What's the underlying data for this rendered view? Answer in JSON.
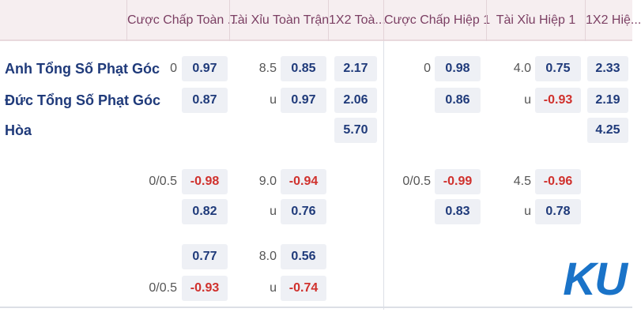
{
  "header": {
    "columns": [
      "Cược Chấp Toàn ...",
      "Tài Xỉu Toàn Trận",
      "1X2 Toà...",
      "Cược Chấp Hiệp 1",
      "Tài Xỉu Hiệp 1",
      "1X2 Hiệ..."
    ]
  },
  "teams": [
    "Anh Tổng Số Phạt Góc",
    "Đức Tổng Số Phạt Góc",
    "Hòa"
  ],
  "rows": [
    [
      "0",
      "0.97",
      "8.5",
      "0.85",
      "2.17",
      "0",
      "0.98",
      "4.0",
      "0.75",
      "2.33"
    ],
    [
      null,
      "0.87",
      "u",
      "0.97",
      "2.06",
      null,
      "0.86",
      "u",
      "-0.93",
      "2.19"
    ],
    [
      null,
      null,
      null,
      null,
      "5.70",
      null,
      null,
      null,
      null,
      "4.25"
    ],
    [
      "0/0.5",
      "-0.98",
      "9.0",
      "-0.94",
      null,
      "0/0.5",
      "-0.99",
      "4.5",
      "-0.96",
      null
    ],
    [
      null,
      "0.82",
      "u",
      "0.76",
      null,
      null,
      "0.83",
      "u",
      "0.78",
      null
    ],
    [
      null,
      "0.77",
      "8.0",
      "0.56",
      null,
      null,
      null,
      null,
      null,
      null
    ],
    [
      "0/0.5",
      "-0.93",
      "u",
      "-0.74",
      null,
      null,
      null,
      null,
      null,
      null
    ]
  ],
  "logo": "KU"
}
